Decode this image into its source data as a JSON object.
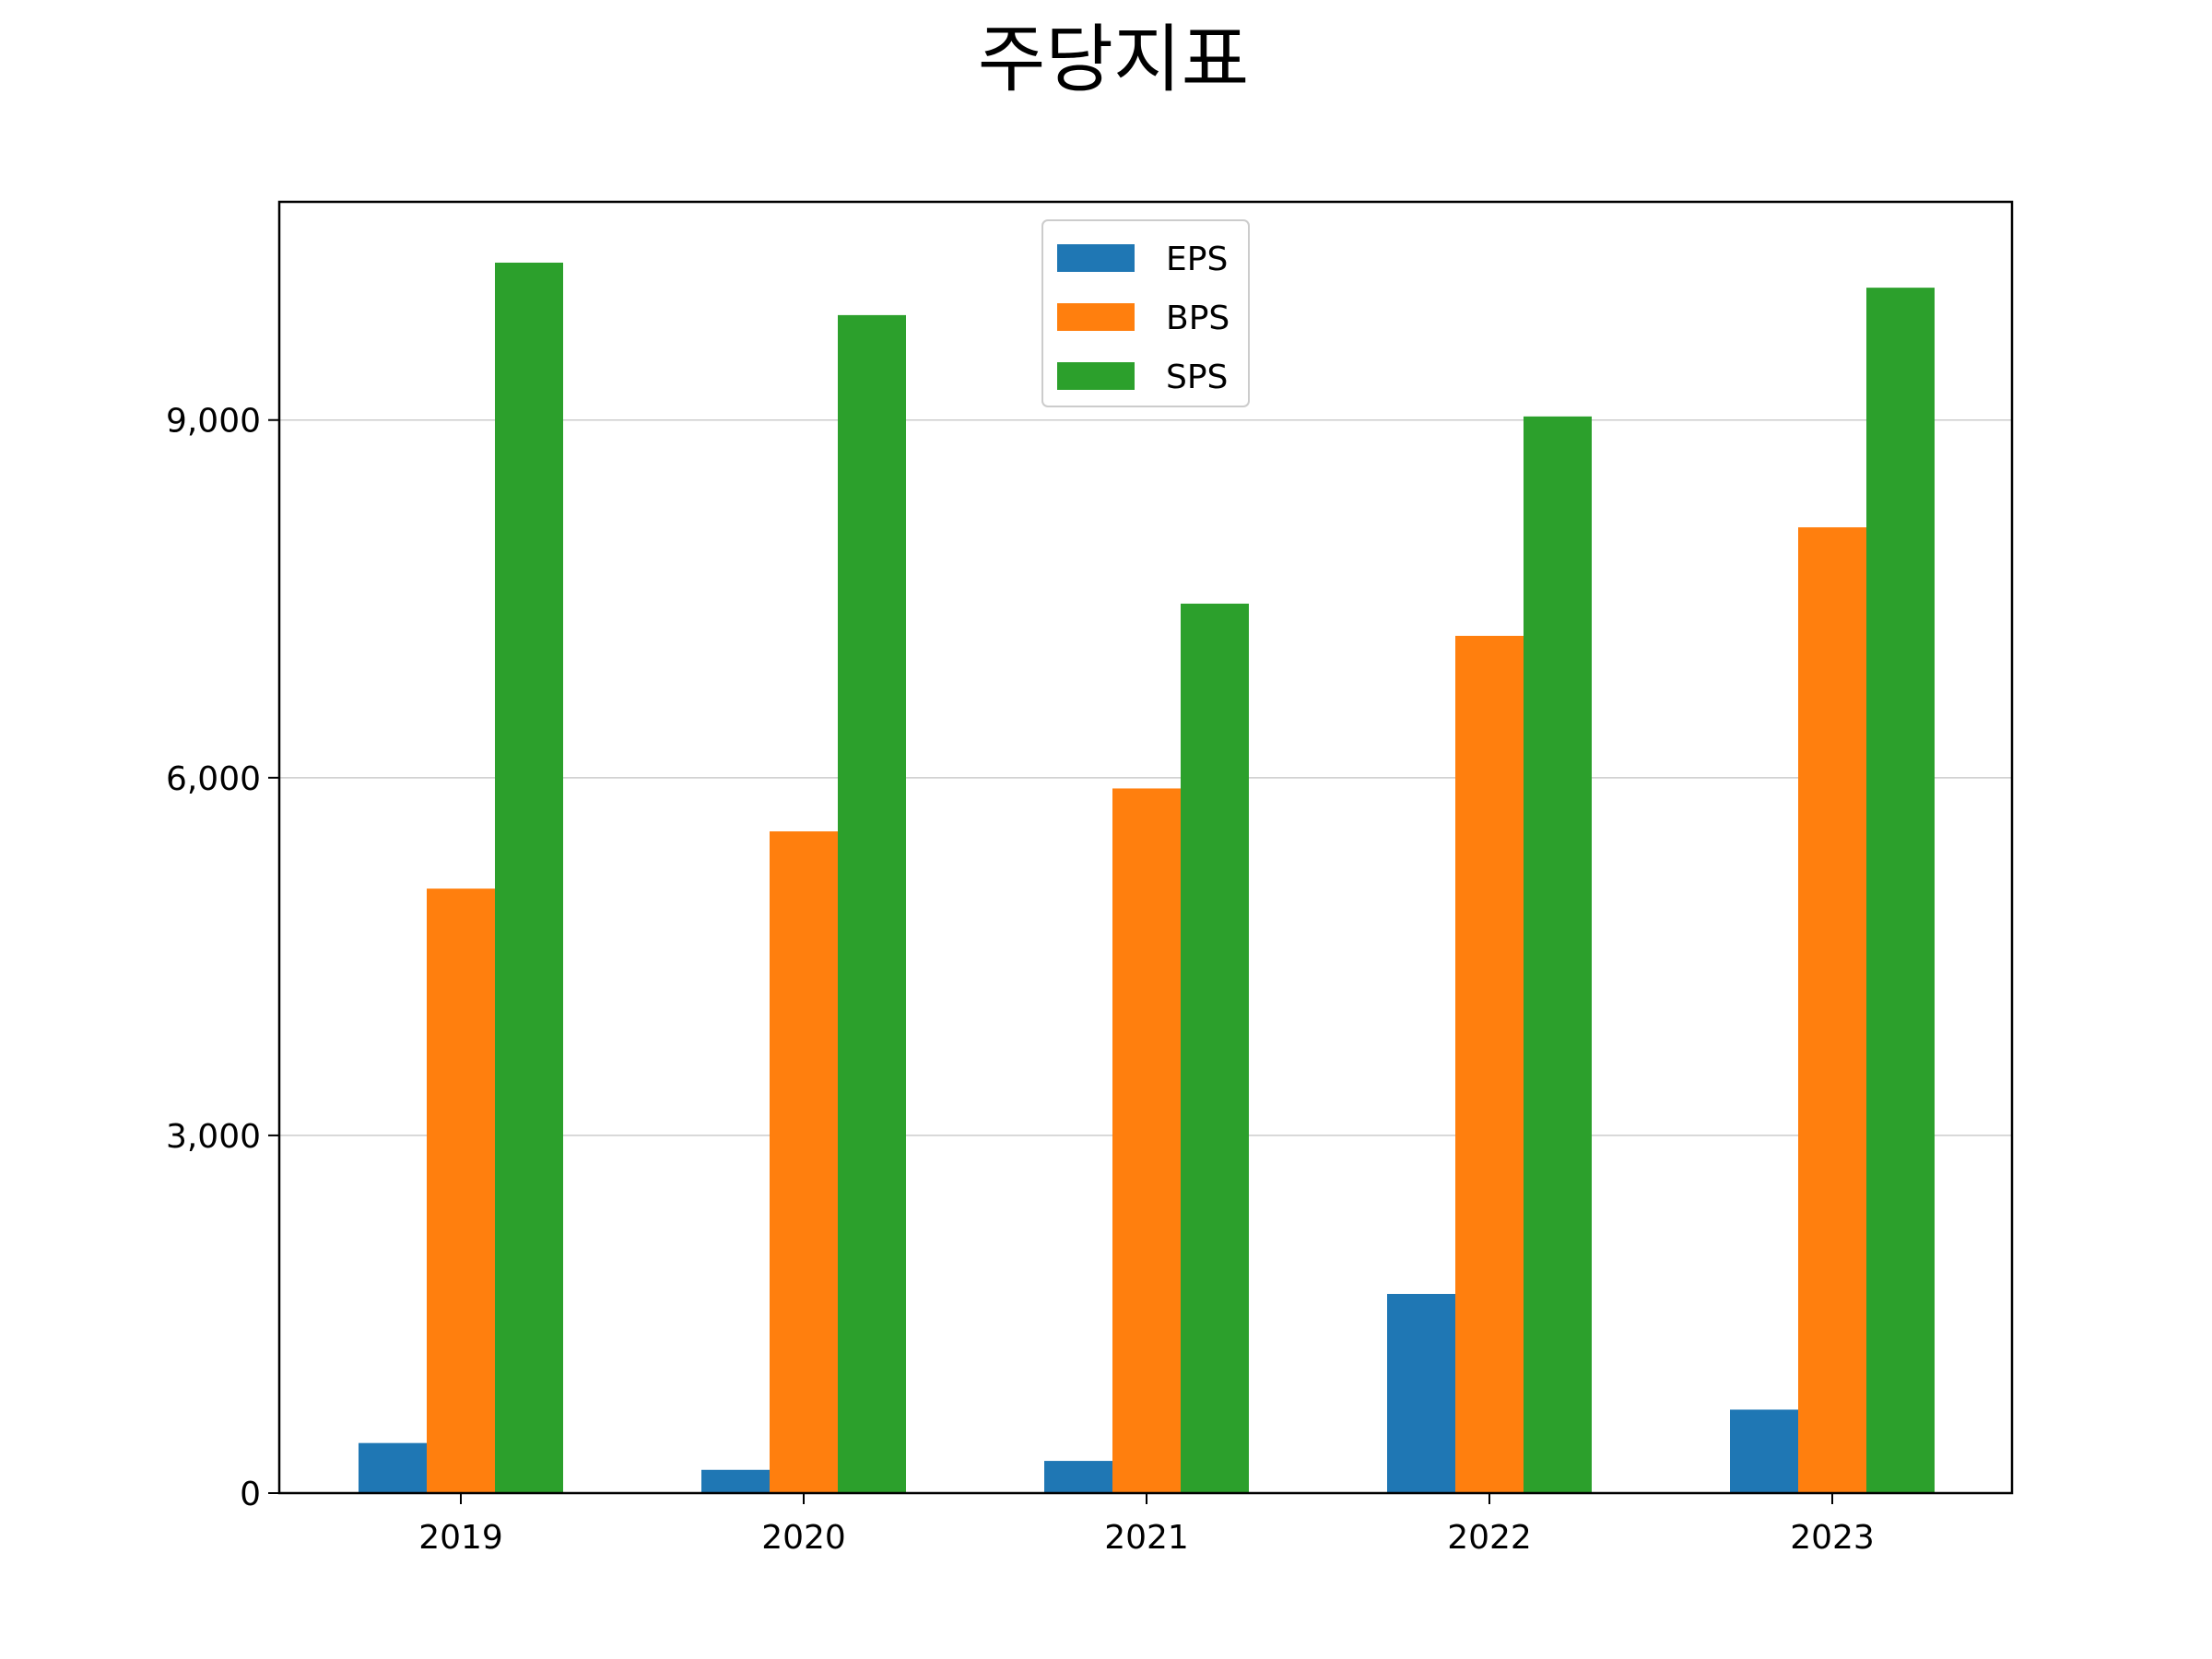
{
  "chart_data": {
    "type": "bar",
    "title": "주당지표",
    "xlabel": "",
    "ylabel": "",
    "categories": [
      "2019",
      "2020",
      "2021",
      "2022",
      "2023"
    ],
    "series": [
      {
        "name": "EPS",
        "color": "#1f77b4",
        "values": [
          420,
          195,
          270,
          1670,
          700
        ]
      },
      {
        "name": "BPS",
        "color": "#ff7f0e",
        "values": [
          5070,
          5550,
          5910,
          7190,
          8100
        ]
      },
      {
        "name": "SPS",
        "color": "#2ca02c",
        "values": [
          10320,
          9880,
          7460,
          9030,
          10110
        ]
      }
    ],
    "ylim": [
      0,
      10830
    ],
    "yticks": [
      0,
      3000,
      6000,
      9000
    ],
    "ytick_labels": [
      "0",
      "3,000",
      "6,000",
      "9,000"
    ],
    "grid": "y",
    "legend": "upper center"
  }
}
